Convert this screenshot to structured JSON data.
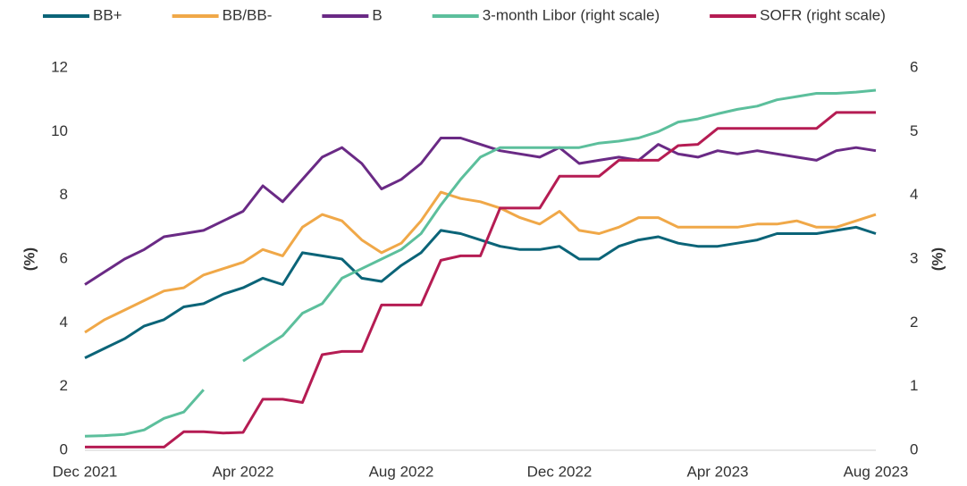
{
  "chart_data": {
    "type": "line",
    "x": [
      "Dec 2021",
      null,
      null,
      null,
      null,
      null,
      null,
      null,
      "Apr 2022",
      null,
      null,
      null,
      null,
      null,
      null,
      null,
      "Aug 2022",
      null,
      null,
      null,
      null,
      null,
      null,
      null,
      "Dec 2022",
      null,
      null,
      null,
      null,
      null,
      null,
      null,
      "Apr 2023",
      null,
      null,
      null,
      null,
      null,
      null,
      null,
      "Aug 2023"
    ],
    "ylabel": "(%)",
    "y2label": "(%)",
    "ylim": [
      0,
      12
    ],
    "yticks": [
      0,
      2,
      4,
      6,
      8,
      10,
      12
    ],
    "y2lim": [
      0,
      6
    ],
    "y2ticks": [
      0,
      1,
      2,
      3,
      4,
      5,
      6
    ],
    "legend": "top",
    "series": [
      {
        "name": "BB+",
        "color": "#0b6478",
        "values": [
          2.9,
          3.2,
          3.5,
          3.9,
          4.1,
          4.5,
          4.6,
          4.9,
          5.1,
          5.4,
          5.2,
          6.2,
          6.1,
          6.0,
          5.4,
          5.3,
          5.8,
          6.2,
          6.9,
          6.8,
          6.6,
          6.4,
          6.3,
          6.3,
          6.4,
          6.0,
          6.0,
          6.4,
          6.6,
          6.7,
          6.5,
          6.4,
          6.4,
          6.5,
          6.6,
          6.8,
          6.8,
          6.8,
          6.9,
          7.0,
          6.8
        ]
      },
      {
        "name": "BB/BB-",
        "color": "#f0a848",
        "values": [
          3.7,
          4.1,
          4.4,
          4.7,
          5.0,
          5.1,
          5.5,
          5.7,
          5.9,
          6.3,
          6.1,
          7.0,
          7.4,
          7.2,
          6.6,
          6.2,
          6.5,
          7.2,
          8.1,
          7.9,
          7.8,
          7.6,
          7.3,
          7.1,
          7.5,
          6.9,
          6.8,
          7.0,
          7.3,
          7.3,
          7.0,
          7.0,
          7.0,
          7.0,
          7.1,
          7.1,
          7.2,
          7.0,
          7.0,
          7.2,
          7.4
        ]
      },
      {
        "name": "B",
        "color": "#6a2a85",
        "values": [
          5.2,
          5.6,
          6.0,
          6.3,
          6.7,
          6.8,
          6.9,
          7.2,
          7.5,
          8.3,
          7.8,
          8.5,
          9.2,
          9.5,
          9.0,
          8.2,
          8.5,
          9.0,
          9.8,
          9.8,
          9.6,
          9.4,
          9.3,
          9.2,
          9.5,
          9.0,
          9.1,
          9.2,
          9.1,
          9.6,
          9.3,
          9.2,
          9.4,
          9.3,
          9.4,
          9.3,
          9.2,
          9.1,
          9.4,
          9.5,
          9.4
        ]
      },
      {
        "name": "3-month Libor (right scale)",
        "color": "#5cbf9c",
        "axis": "y2",
        "values": [
          0.22,
          0.23,
          0.25,
          0.32,
          0.5,
          0.6,
          0.95,
          null,
          1.4,
          1.6,
          1.8,
          2.15,
          2.3,
          2.7,
          2.85,
          3.0,
          3.15,
          3.4,
          3.85,
          4.25,
          4.6,
          4.75,
          4.75,
          4.75,
          4.75,
          4.75,
          4.82,
          4.85,
          4.9,
          5.0,
          5.15,
          5.2,
          5.28,
          5.35,
          5.4,
          5.5,
          5.55,
          5.6,
          5.6,
          5.62,
          5.65
        ]
      },
      {
        "name": "SOFR (right scale)",
        "color": "#b51c53",
        "axis": "y2",
        "values": [
          0.05,
          0.05,
          0.05,
          0.05,
          0.05,
          0.29,
          0.29,
          0.27,
          0.28,
          0.8,
          0.8,
          0.75,
          1.5,
          1.55,
          1.55,
          2.28,
          2.28,
          2.28,
          2.98,
          3.05,
          3.05,
          3.8,
          3.8,
          3.8,
          4.3,
          4.3,
          4.3,
          4.55,
          4.55,
          4.55,
          4.78,
          4.8,
          5.05,
          5.05,
          5.05,
          5.05,
          5.05,
          5.05,
          5.3,
          5.3,
          5.3
        ]
      }
    ]
  }
}
